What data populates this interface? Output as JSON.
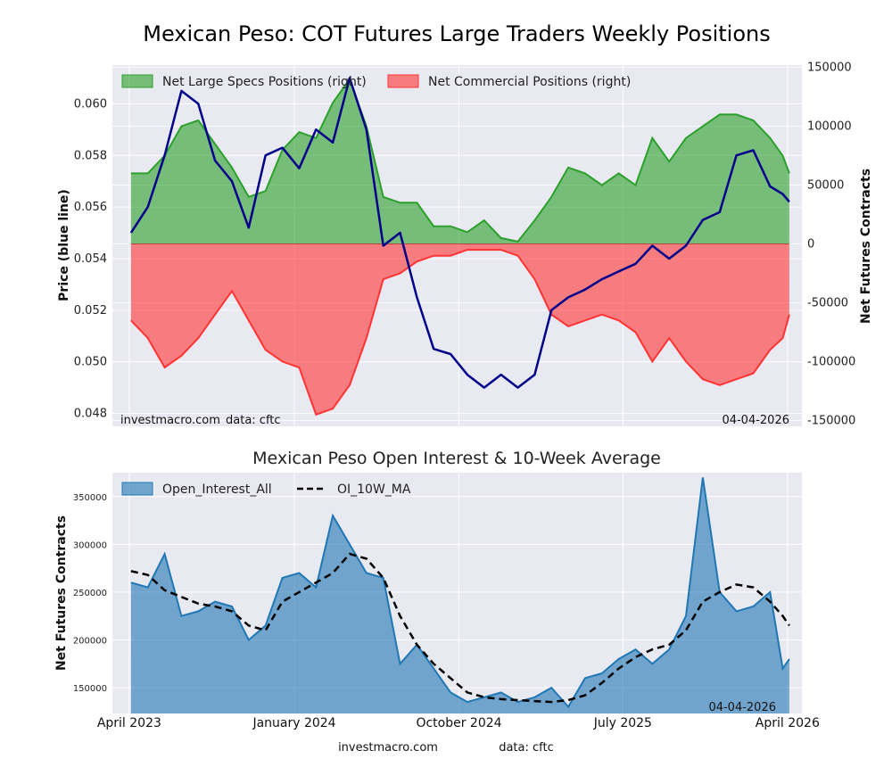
{
  "figure": {
    "title": "Mexican Peso: COT Futures Large Traders Weekly Positions",
    "footer_source": "investmacro.com",
    "footer_data": "data: cftc"
  },
  "chart_data": [
    {
      "type": "area",
      "title": "Mexican Peso: COT Futures Large Traders Weekly Positions",
      "ylabel_left": "Price (blue line)",
      "ylabel_right": "Net Futures Contracts",
      "ylim_left": [
        0.0475,
        0.0615
      ],
      "ylim_right": [
        -155000,
        152000
      ],
      "yticks_left": [
        "0.048",
        "0.050",
        "0.052",
        "0.054",
        "0.056",
        "0.058",
        "0.060"
      ],
      "yticks_right": [
        "-150000",
        "-100000",
        "-50000",
        "0",
        "50000",
        "100000",
        "150000"
      ],
      "xlim": [
        "2023-03-04",
        "2026-04-25"
      ],
      "legend_position": "top-left",
      "grid": true,
      "annotations": {
        "source": "investmacro.com",
        "data": "data: cftc",
        "date": "04-04-2026"
      },
      "series": [
        {
          "name": "Net Large Specs Positions (right)",
          "axis": "right",
          "color": "#2ca02c",
          "x": [
            "2023-04-04",
            "2023-05-02",
            "2023-05-30",
            "2023-06-27",
            "2023-07-25",
            "2023-08-22",
            "2023-09-19",
            "2023-10-17",
            "2023-11-14",
            "2023-12-12",
            "2024-01-09",
            "2024-02-06",
            "2024-03-05",
            "2024-04-02",
            "2024-04-30",
            "2024-05-28",
            "2024-06-25",
            "2024-07-23",
            "2024-08-20",
            "2024-09-17",
            "2024-10-15",
            "2024-11-12",
            "2024-12-10",
            "2025-01-07",
            "2025-02-04",
            "2025-03-04",
            "2025-04-01",
            "2025-04-29",
            "2025-05-27",
            "2025-06-24",
            "2025-07-22",
            "2025-08-19",
            "2025-09-16",
            "2025-10-14",
            "2025-11-11",
            "2025-12-09",
            "2026-01-06",
            "2026-02-03",
            "2026-03-03",
            "2026-03-24",
            "2026-04-04"
          ],
          "values": [
            60000,
            60000,
            75000,
            100000,
            105000,
            85000,
            65000,
            40000,
            45000,
            80000,
            95000,
            90000,
            120000,
            140000,
            100000,
            40000,
            35000,
            35000,
            15000,
            15000,
            10000,
            20000,
            5000,
            2000,
            20000,
            40000,
            65000,
            60000,
            50000,
            60000,
            50000,
            90000,
            70000,
            90000,
            100000,
            110000,
            110000,
            105000,
            90000,
            75000,
            60000
          ]
        },
        {
          "name": "Net Commercial Positions (right)",
          "axis": "right",
          "color": "#ff3333",
          "x": [
            "2023-04-04",
            "2023-05-02",
            "2023-05-30",
            "2023-06-27",
            "2023-07-25",
            "2023-08-22",
            "2023-09-19",
            "2023-10-17",
            "2023-11-14",
            "2023-12-12",
            "2024-01-09",
            "2024-02-06",
            "2024-03-05",
            "2024-04-02",
            "2024-04-30",
            "2024-05-28",
            "2024-06-25",
            "2024-07-23",
            "2024-08-20",
            "2024-09-17",
            "2024-10-15",
            "2024-11-12",
            "2024-12-10",
            "2025-01-07",
            "2025-02-04",
            "2025-03-04",
            "2025-04-01",
            "2025-04-29",
            "2025-05-27",
            "2025-06-24",
            "2025-07-22",
            "2025-08-19",
            "2025-09-16",
            "2025-10-14",
            "2025-11-11",
            "2025-12-09",
            "2026-01-06",
            "2026-02-03",
            "2026-03-03",
            "2026-03-24",
            "2026-04-04"
          ],
          "values": [
            -65000,
            -80000,
            -105000,
            -95000,
            -80000,
            -60000,
            -40000,
            -65000,
            -90000,
            -100000,
            -105000,
            -145000,
            -140000,
            -120000,
            -80000,
            -30000,
            -25000,
            -15000,
            -10000,
            -10000,
            -5000,
            -5000,
            -5000,
            -10000,
            -30000,
            -60000,
            -70000,
            -65000,
            -60000,
            -65000,
            -75000,
            -100000,
            -80000,
            -100000,
            -115000,
            -120000,
            -115000,
            -110000,
            -90000,
            -80000,
            -60000
          ]
        },
        {
          "name": "Price",
          "axis": "left",
          "color": "#00008b",
          "x": [
            "2023-04-04",
            "2023-05-02",
            "2023-05-30",
            "2023-06-27",
            "2023-07-25",
            "2023-08-22",
            "2023-09-19",
            "2023-10-17",
            "2023-11-14",
            "2023-12-12",
            "2024-01-09",
            "2024-02-06",
            "2024-03-05",
            "2024-04-02",
            "2024-04-30",
            "2024-05-28",
            "2024-06-25",
            "2024-07-23",
            "2024-08-20",
            "2024-09-17",
            "2024-10-15",
            "2024-11-12",
            "2024-12-10",
            "2025-01-07",
            "2025-02-04",
            "2025-03-04",
            "2025-04-01",
            "2025-04-29",
            "2025-05-27",
            "2025-06-24",
            "2025-07-22",
            "2025-08-19",
            "2025-09-16",
            "2025-10-14",
            "2025-11-11",
            "2025-12-09",
            "2026-01-06",
            "2026-02-03",
            "2026-03-03",
            "2026-03-24",
            "2026-04-04"
          ],
          "values": [
            0.055,
            0.056,
            0.058,
            0.0605,
            0.06,
            0.0578,
            0.057,
            0.0552,
            0.058,
            0.0583,
            0.0575,
            0.059,
            0.0585,
            0.061,
            0.059,
            0.0545,
            0.055,
            0.0525,
            0.0505,
            0.0503,
            0.0495,
            0.049,
            0.0495,
            0.049,
            0.0495,
            0.052,
            0.0525,
            0.0528,
            0.0532,
            0.0535,
            0.0538,
            0.0545,
            0.054,
            0.0545,
            0.0555,
            0.0558,
            0.058,
            0.0582,
            0.0568,
            0.0565,
            0.0562
          ]
        }
      ]
    },
    {
      "type": "area",
      "title": "Mexican Peso Open Interest & 10-Week Average",
      "ylabel": "Net Futures Contracts",
      "ylim": [
        123000,
        375000
      ],
      "yticks": [
        "150000",
        "200000",
        "250000",
        "300000",
        "350000"
      ],
      "xlim": [
        "2023-03-04",
        "2026-04-25"
      ],
      "xticks": [
        "April 2023",
        "January 2024",
        "October 2024",
        "July 2025",
        "April 2026"
      ],
      "legend_position": "top-left",
      "grid": true,
      "annotations": {
        "date": "04-04-2026"
      },
      "series": [
        {
          "name": "Open_Interest_All",
          "color": "#1f77b4",
          "x": [
            "2023-04-04",
            "2023-05-02",
            "2023-05-30",
            "2023-06-27",
            "2023-07-25",
            "2023-08-22",
            "2023-09-19",
            "2023-10-17",
            "2023-11-14",
            "2023-12-12",
            "2024-01-09",
            "2024-02-06",
            "2024-03-05",
            "2024-04-02",
            "2024-04-30",
            "2024-05-28",
            "2024-06-25",
            "2024-07-23",
            "2024-08-20",
            "2024-09-17",
            "2024-10-15",
            "2024-11-12",
            "2024-12-10",
            "2025-01-07",
            "2025-02-04",
            "2025-03-04",
            "2025-04-01",
            "2025-04-29",
            "2025-05-27",
            "2025-06-24",
            "2025-07-22",
            "2025-08-19",
            "2025-09-16",
            "2025-10-14",
            "2025-11-11",
            "2025-12-09",
            "2026-01-06",
            "2026-02-03",
            "2026-03-03",
            "2026-03-24",
            "2026-04-04"
          ],
          "values": [
            260000,
            255000,
            290000,
            225000,
            230000,
            240000,
            235000,
            200000,
            215000,
            265000,
            270000,
            255000,
            330000,
            300000,
            270000,
            265000,
            175000,
            195000,
            170000,
            145000,
            135000,
            140000,
            145000,
            135000,
            140000,
            150000,
            130000,
            160000,
            165000,
            180000,
            190000,
            175000,
            190000,
            225000,
            370000,
            250000,
            230000,
            235000,
            250000,
            170000,
            180000
          ]
        },
        {
          "name": "OI_10W_MA",
          "color": "#000000",
          "x": [
            "2023-04-04",
            "2023-05-02",
            "2023-05-30",
            "2023-06-27",
            "2023-07-25",
            "2023-08-22",
            "2023-09-19",
            "2023-10-17",
            "2023-11-14",
            "2023-12-12",
            "2024-01-09",
            "2024-02-06",
            "2024-03-05",
            "2024-04-02",
            "2024-04-30",
            "2024-05-28",
            "2024-06-25",
            "2024-07-23",
            "2024-08-20",
            "2024-09-17",
            "2024-10-15",
            "2024-11-12",
            "2024-12-10",
            "2025-01-07",
            "2025-02-04",
            "2025-03-04",
            "2025-04-01",
            "2025-04-29",
            "2025-05-27",
            "2025-06-24",
            "2025-07-22",
            "2025-08-19",
            "2025-09-16",
            "2025-10-14",
            "2025-11-11",
            "2025-12-09",
            "2026-01-06",
            "2026-02-03",
            "2026-03-03",
            "2026-03-24",
            "2026-04-04"
          ],
          "values": [
            272000,
            268000,
            252000,
            245000,
            238000,
            235000,
            230000,
            215000,
            210000,
            240000,
            250000,
            260000,
            270000,
            290000,
            285000,
            265000,
            225000,
            195000,
            175000,
            160000,
            145000,
            140000,
            138000,
            137000,
            136000,
            135000,
            137000,
            142000,
            155000,
            170000,
            182000,
            190000,
            195000,
            210000,
            240000,
            250000,
            258000,
            255000,
            240000,
            225000,
            215000
          ]
        }
      ]
    }
  ]
}
